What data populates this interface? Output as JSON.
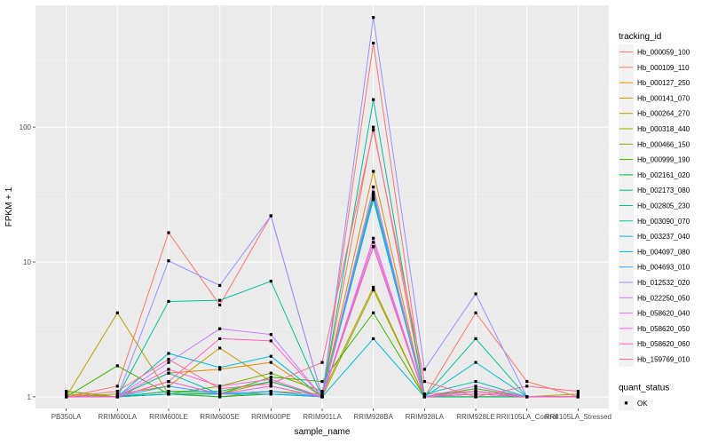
{
  "chart_data": {
    "type": "line",
    "xlabel": "sample_name",
    "ylabel": "FPKM + 1",
    "y_scale": "log10",
    "ylim": [
      0.82,
      800
    ],
    "y_ticks": [
      1,
      10,
      100
    ],
    "y_tick_labels": [
      "1",
      "10",
      "100"
    ],
    "grid": true,
    "legend_position": "right",
    "categories": [
      "PB350LA",
      "RRIM600LA",
      "RRIM600LE",
      "RRIM600SE",
      "RRIM600PE",
      "RRIM901LA",
      "RRIM928BA",
      "RRIM928LA",
      "RRIM928LE",
      "RRII105LA_Control",
      "RRII105LA_Stressed"
    ],
    "legend_title": "tracking_id",
    "shape_legend_title": "quant_status",
    "shape_legend_label": "OK",
    "series": [
      {
        "name": "Hb_000059_100",
        "color": "#F8766D",
        "values": [
          1.0,
          1.2,
          16.5,
          4.8,
          22.0,
          1.0,
          420.0,
          1.0,
          4.2,
          1.3,
          1.0
        ]
      },
      {
        "name": "Hb_000109_110",
        "color": "#F07E4D",
        "values": [
          1.1,
          1.0,
          1.3,
          1.05,
          1.2,
          1.0,
          100.0,
          1.05,
          1.1,
          1.0,
          1.0
        ]
      },
      {
        "name": "Hb_000127_250",
        "color": "#DE8C00",
        "values": [
          1.0,
          1.0,
          1.5,
          1.6,
          1.8,
          1.0,
          47.0,
          1.0,
          1.05,
          1.0,
          1.0
        ]
      },
      {
        "name": "Hb_000141_070",
        "color": "#C99800",
        "values": [
          1.0,
          1.05,
          1.2,
          2.3,
          1.3,
          1.0,
          33.0,
          1.0,
          1.1,
          1.0,
          1.0
        ]
      },
      {
        "name": "Hb_000264_270",
        "color": "#B79F00",
        "values": [
          1.0,
          4.2,
          1.05,
          1.0,
          1.1,
          1.05,
          6.5,
          1.0,
          1.0,
          1.0,
          1.05
        ]
      },
      {
        "name": "Hb_000318_440",
        "color": "#9CA700",
        "values": [
          1.05,
          1.0,
          1.1,
          1.05,
          1.3,
          1.0,
          6.2,
          1.0,
          1.05,
          1.0,
          1.0
        ]
      },
      {
        "name": "Hb_000466_150",
        "color": "#7CAE00",
        "values": [
          1.1,
          1.0,
          1.05,
          1.2,
          1.5,
          1.1,
          30.0,
          1.0,
          1.1,
          1.0,
          1.0
        ]
      },
      {
        "name": "Hb_000999_190",
        "color": "#3EB400",
        "values": [
          1.0,
          1.7,
          1.05,
          1.05,
          1.4,
          1.3,
          4.2,
          1.0,
          1.15,
          1.0,
          1.0
        ]
      },
      {
        "name": "Hb_002161_020",
        "color": "#00BA38",
        "values": [
          1.0,
          1.0,
          1.05,
          1.0,
          1.05,
          1.0,
          13.0,
          1.0,
          1.0,
          1.0,
          1.0
        ]
      },
      {
        "name": "Hb_002173_080",
        "color": "#00BE70",
        "values": [
          1.0,
          1.0,
          1.1,
          1.1,
          1.3,
          1.0,
          30.0,
          1.0,
          1.0,
          1.0,
          1.0
        ]
      },
      {
        "name": "Hb_002805_230",
        "color": "#00C097",
        "values": [
          1.0,
          1.0,
          5.1,
          5.2,
          7.2,
          1.0,
          160.0,
          1.0,
          2.7,
          1.0,
          1.0
        ]
      },
      {
        "name": "Hb_003090_070",
        "color": "#00C0B8",
        "values": [
          1.0,
          1.0,
          1.5,
          1.05,
          1.1,
          1.0,
          32.0,
          1.05,
          1.3,
          1.0,
          1.0
        ]
      },
      {
        "name": "Hb_003237_040",
        "color": "#00BCD6",
        "values": [
          1.0,
          1.0,
          2.1,
          1.65,
          2.0,
          1.0,
          2.7,
          1.0,
          1.8,
          1.0,
          1.0
        ]
      },
      {
        "name": "Hb_004097_080",
        "color": "#00B5EE",
        "values": [
          1.0,
          1.0,
          1.05,
          1.05,
          1.05,
          1.0,
          29.0,
          1.0,
          1.05,
          1.0,
          1.0
        ]
      },
      {
        "name": "Hb_004693_010",
        "color": "#35A2FF",
        "values": [
          1.0,
          1.0,
          1.2,
          1.05,
          1.1,
          1.0,
          31.0,
          1.0,
          1.1,
          1.0,
          1.0
        ]
      },
      {
        "name": "Hb_012532_020",
        "color": "#9590FF",
        "values": [
          1.0,
          1.0,
          10.2,
          6.7,
          22.0,
          1.0,
          650.0,
          1.6,
          5.8,
          1.0,
          1.0
        ]
      },
      {
        "name": "Hb_022250_050",
        "color": "#C77CFF",
        "values": [
          1.0,
          1.0,
          1.8,
          3.2,
          2.9,
          1.0,
          36.0,
          1.0,
          1.2,
          1.0,
          1.0
        ]
      },
      {
        "name": "Hb_058620_040",
        "color": "#E76BF3",
        "values": [
          1.0,
          1.0,
          1.3,
          1.05,
          1.2,
          1.0,
          14.0,
          1.0,
          1.05,
          1.0,
          1.0
        ]
      },
      {
        "name": "Hb_058620_050",
        "color": "#FA62DB",
        "values": [
          1.0,
          1.0,
          1.6,
          1.2,
          1.35,
          1.0,
          15.0,
          1.0,
          1.1,
          1.0,
          1.0
        ]
      },
      {
        "name": "Hb_058620_060",
        "color": "#FF62BC",
        "values": [
          1.0,
          1.0,
          1.3,
          2.7,
          2.6,
          1.0,
          13.0,
          1.0,
          1.05,
          1.0,
          1.0
        ]
      },
      {
        "name": "Hb_159769_010",
        "color": "#FF6C91",
        "values": [
          1.0,
          1.1,
          1.9,
          1.15,
          1.25,
          1.8,
          95.0,
          1.3,
          1.0,
          1.2,
          1.1
        ]
      }
    ]
  }
}
